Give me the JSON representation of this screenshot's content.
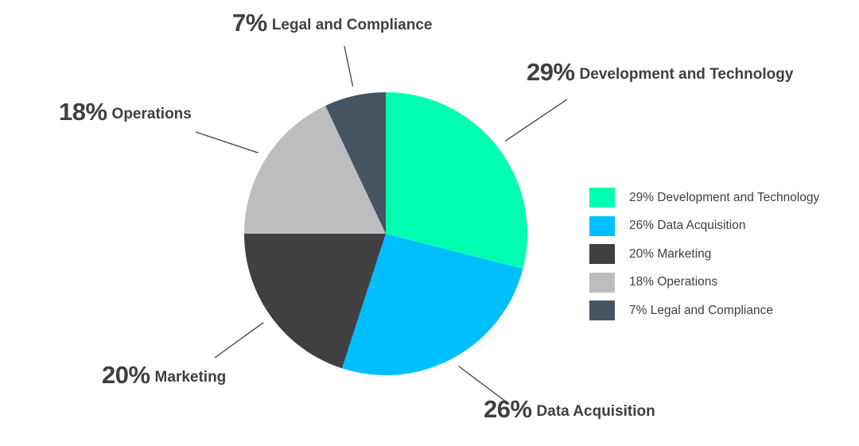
{
  "chart_data": {
    "type": "pie",
    "slices": [
      {
        "label": "Development and Technology",
        "value": 29,
        "pct_text": "29%",
        "legend_text": "29% Development and Technology",
        "color": "#00ffb0"
      },
      {
        "label": "Data Acquisition",
        "value": 26,
        "pct_text": "26%",
        "legend_text": "26% Data Acquisition",
        "color": "#00bfff"
      },
      {
        "label": "Marketing",
        "value": 20,
        "pct_text": "20%",
        "legend_text": "20% Marketing",
        "color": "#404042"
      },
      {
        "label": "Operations",
        "value": 18,
        "pct_text": "18%",
        "legend_text": "18% Operations",
        "color": "#bcbdbf"
      },
      {
        "label": "Legal and Compliance",
        "value": 7,
        "pct_text": "7%",
        "legend_text": "7% Legal and Compliance",
        "color": "#475462"
      }
    ],
    "start_position": "top, clockwise",
    "legend_placement": "right",
    "leader_line_color": "#3f3f41"
  }
}
